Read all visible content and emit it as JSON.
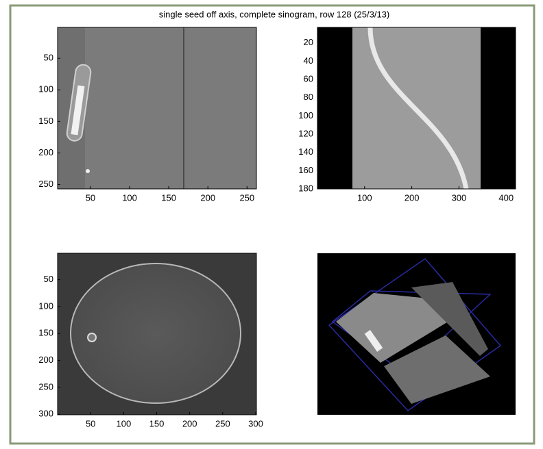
{
  "title": "single seed off axis, complete sinogram, row 128 (25/3/13)",
  "chart_data": [
    {
      "type": "image",
      "xlim": [
        8,
        262
      ],
      "ylim": [
        1,
        257
      ],
      "xticks": [
        50,
        100,
        150,
        200,
        250
      ],
      "yticks": [
        50,
        100,
        150,
        200,
        250
      ]
    },
    {
      "type": "image",
      "xlim": [
        0,
        420
      ],
      "ylim": [
        3,
        180
      ],
      "xticks": [
        100,
        200,
        300,
        400
      ],
      "yticks": [
        20,
        40,
        60,
        80,
        100,
        120,
        140,
        160,
        180
      ]
    },
    {
      "type": "image",
      "xlim": [
        0,
        301
      ],
      "ylim": [
        1,
        301
      ],
      "xticks": [
        50,
        100,
        150,
        200,
        250,
        300
      ],
      "yticks": [
        50,
        100,
        150,
        200,
        250,
        300
      ]
    },
    {
      "type": "image"
    }
  ]
}
